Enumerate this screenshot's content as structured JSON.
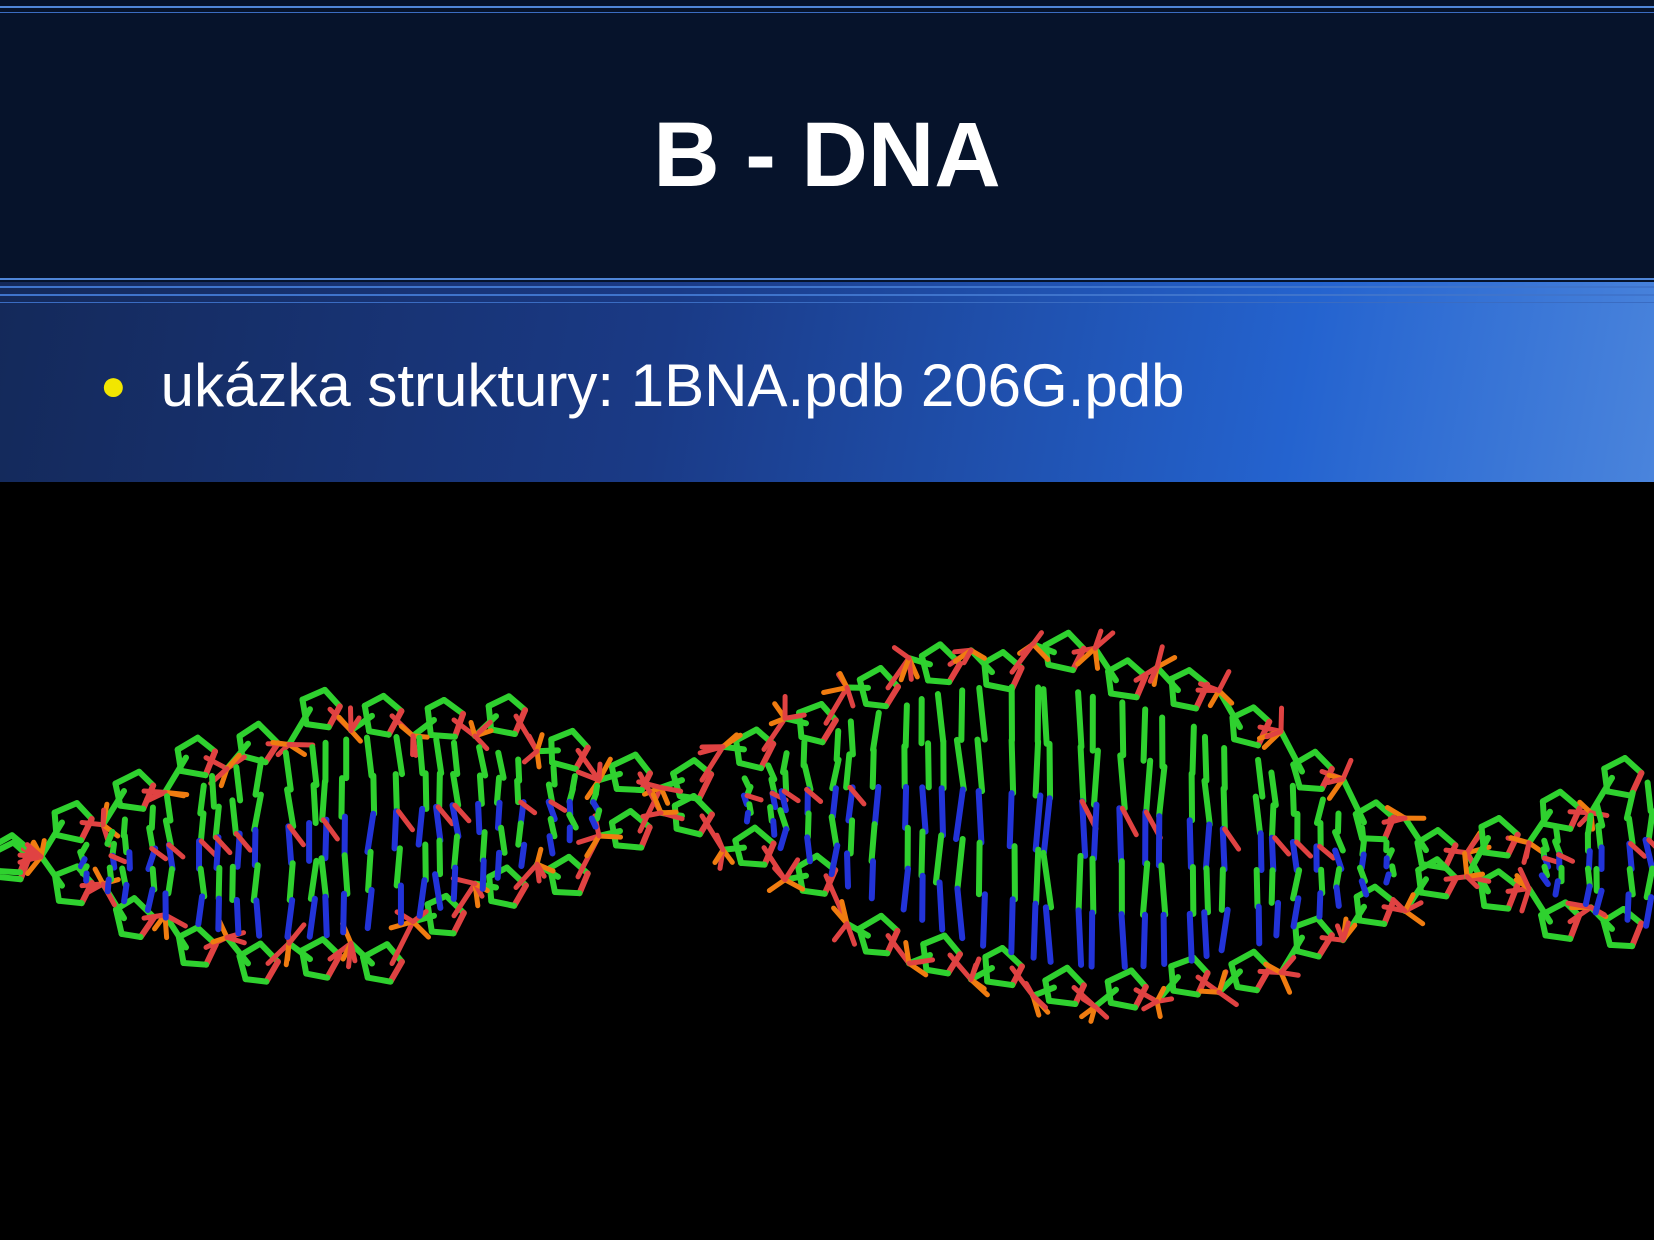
{
  "slide": {
    "title": "B - DNA",
    "bullet": "ukázka struktury: 1BNA.pdb 206G.pdb"
  },
  "figure": {
    "molecule_colors": {
      "carbon": "#2fd12f",
      "oxygen": "#e04242",
      "nitrogen": "#2233d8",
      "phosphorus": "#f07c10"
    }
  },
  "colors": {
    "title_background": "#06132b",
    "bullet_band_start": "#14295a",
    "bullet_band_end": "#4a84dc",
    "bullet_marker": "#f2e600",
    "text": "#ffffff"
  }
}
